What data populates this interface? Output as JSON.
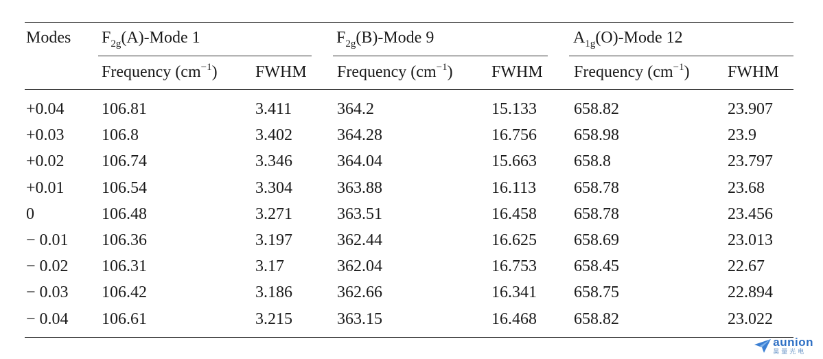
{
  "table": {
    "header": {
      "modes": "Modes",
      "groups": [
        {
          "sym_main": "F",
          "sym_sub": "2g",
          "suffix": "(A)-Mode 1"
        },
        {
          "sym_main": "F",
          "sym_sub": "2g",
          "suffix": "(B)-Mode 9"
        },
        {
          "sym_main": "A",
          "sym_sub": "1g",
          "suffix": "(O)-Mode 12"
        }
      ],
      "freq_prefix": "Frequency (cm",
      "freq_exp": "−1",
      "freq_suffix": ")",
      "fwhm": "FWHM"
    },
    "rows": [
      [
        "+0.04",
        "106.81",
        "3.411",
        "364.2",
        "15.133",
        "658.82",
        "23.907"
      ],
      [
        "+0.03",
        "106.8",
        "3.402",
        "364.28",
        "16.756",
        "658.98",
        "23.9"
      ],
      [
        "+0.02",
        "106.74",
        "3.346",
        "364.04",
        "15.663",
        "658.8",
        "23.797"
      ],
      [
        "+0.01",
        "106.54",
        "3.304",
        "363.88",
        "16.113",
        "658.78",
        "23.68"
      ],
      [
        "0",
        "106.48",
        "3.271",
        "363.51",
        "16.458",
        "658.78",
        "23.456"
      ],
      [
        "− 0.01",
        "106.36",
        "3.197",
        "362.44",
        "16.625",
        "658.69",
        "23.013"
      ],
      [
        "− 0.02",
        "106.31",
        "3.17",
        "362.04",
        "16.753",
        "658.45",
        "22.67"
      ],
      [
        "− 0.03",
        "106.42",
        "3.186",
        "362.66",
        "16.341",
        "658.75",
        "22.894"
      ],
      [
        "− 0.04",
        "106.61",
        "3.215",
        "363.15",
        "16.468",
        "658.82",
        "23.022"
      ]
    ]
  },
  "watermark": {
    "word": "aunion",
    "sub": "昊量光电",
    "color": "#2d6fc4"
  }
}
